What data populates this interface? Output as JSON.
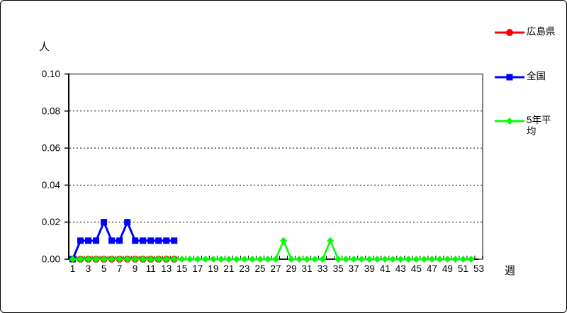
{
  "chart_data": {
    "type": "line",
    "title": "",
    "y_unit": "人",
    "x_unit": "週",
    "x_range": [
      1,
      53
    ],
    "ylim": [
      0,
      0.1
    ],
    "x_tick_labels": [
      1,
      3,
      5,
      7,
      9,
      11,
      13,
      15,
      17,
      19,
      21,
      23,
      25,
      27,
      29,
      31,
      33,
      35,
      37,
      39,
      41,
      43,
      45,
      47,
      49,
      51,
      53
    ],
    "y_ticks": [
      0,
      0.02,
      0.04,
      0.06,
      0.08,
      0.1
    ],
    "y_tick_labels": [
      "0.00",
      "0.02",
      "0.04",
      "0.06",
      "0.08",
      "0.10"
    ],
    "grid": "horizontal-dashed",
    "legend_position": "right",
    "plot_border_color": "#848284",
    "axis_color": "#000000",
    "series": [
      {
        "name": "広島県",
        "color": "#ff0000",
        "marker": "circle",
        "weeks": [
          1,
          2,
          3,
          4,
          5,
          6,
          7,
          8,
          9,
          10,
          11,
          12,
          13,
          14
        ],
        "values": [
          0,
          0,
          0,
          0,
          0,
          0,
          0,
          0,
          0,
          0,
          0,
          0,
          0,
          0
        ]
      },
      {
        "name": "全国",
        "color": "#0000ff",
        "marker": "square",
        "weeks": [
          1,
          2,
          3,
          4,
          5,
          6,
          7,
          8,
          9,
          10,
          11,
          12,
          13,
          14
        ],
        "values": [
          0,
          0.01,
          0.01,
          0.01,
          0.02,
          0.01,
          0.01,
          0.02,
          0.01,
          0.01,
          0.01,
          0.01,
          0.01,
          0.01
        ]
      },
      {
        "name": "5年平均",
        "color": "#00ff00",
        "marker": "diamond",
        "weeks": [
          1,
          2,
          3,
          4,
          5,
          6,
          7,
          8,
          9,
          10,
          11,
          12,
          13,
          14,
          15,
          16,
          17,
          18,
          19,
          20,
          21,
          22,
          23,
          24,
          25,
          26,
          27,
          28,
          29,
          30,
          31,
          32,
          33,
          34,
          35,
          36,
          37,
          38,
          39,
          40,
          41,
          42,
          43,
          44,
          45,
          46,
          47,
          48,
          49,
          50,
          51,
          52
        ],
        "values": [
          0,
          0,
          0,
          0,
          0,
          0,
          0,
          0,
          0,
          0,
          0,
          0,
          0,
          0,
          0,
          0,
          0,
          0,
          0,
          0,
          0,
          0,
          0,
          0,
          0,
          0,
          0,
          0.01,
          0,
          0,
          0,
          0,
          0,
          0.01,
          0,
          0,
          0,
          0,
          0,
          0,
          0,
          0,
          0,
          0,
          0,
          0,
          0,
          0,
          0,
          0,
          0,
          0
        ]
      }
    ]
  },
  "legend": {
    "items": [
      {
        "label": "広島県",
        "color": "#ff0000",
        "marker": "circle"
      },
      {
        "label": "全国",
        "color": "#0000ff",
        "marker": "square"
      },
      {
        "label": "5年平均",
        "color": "#00ff00",
        "marker": "diamond"
      }
    ]
  }
}
